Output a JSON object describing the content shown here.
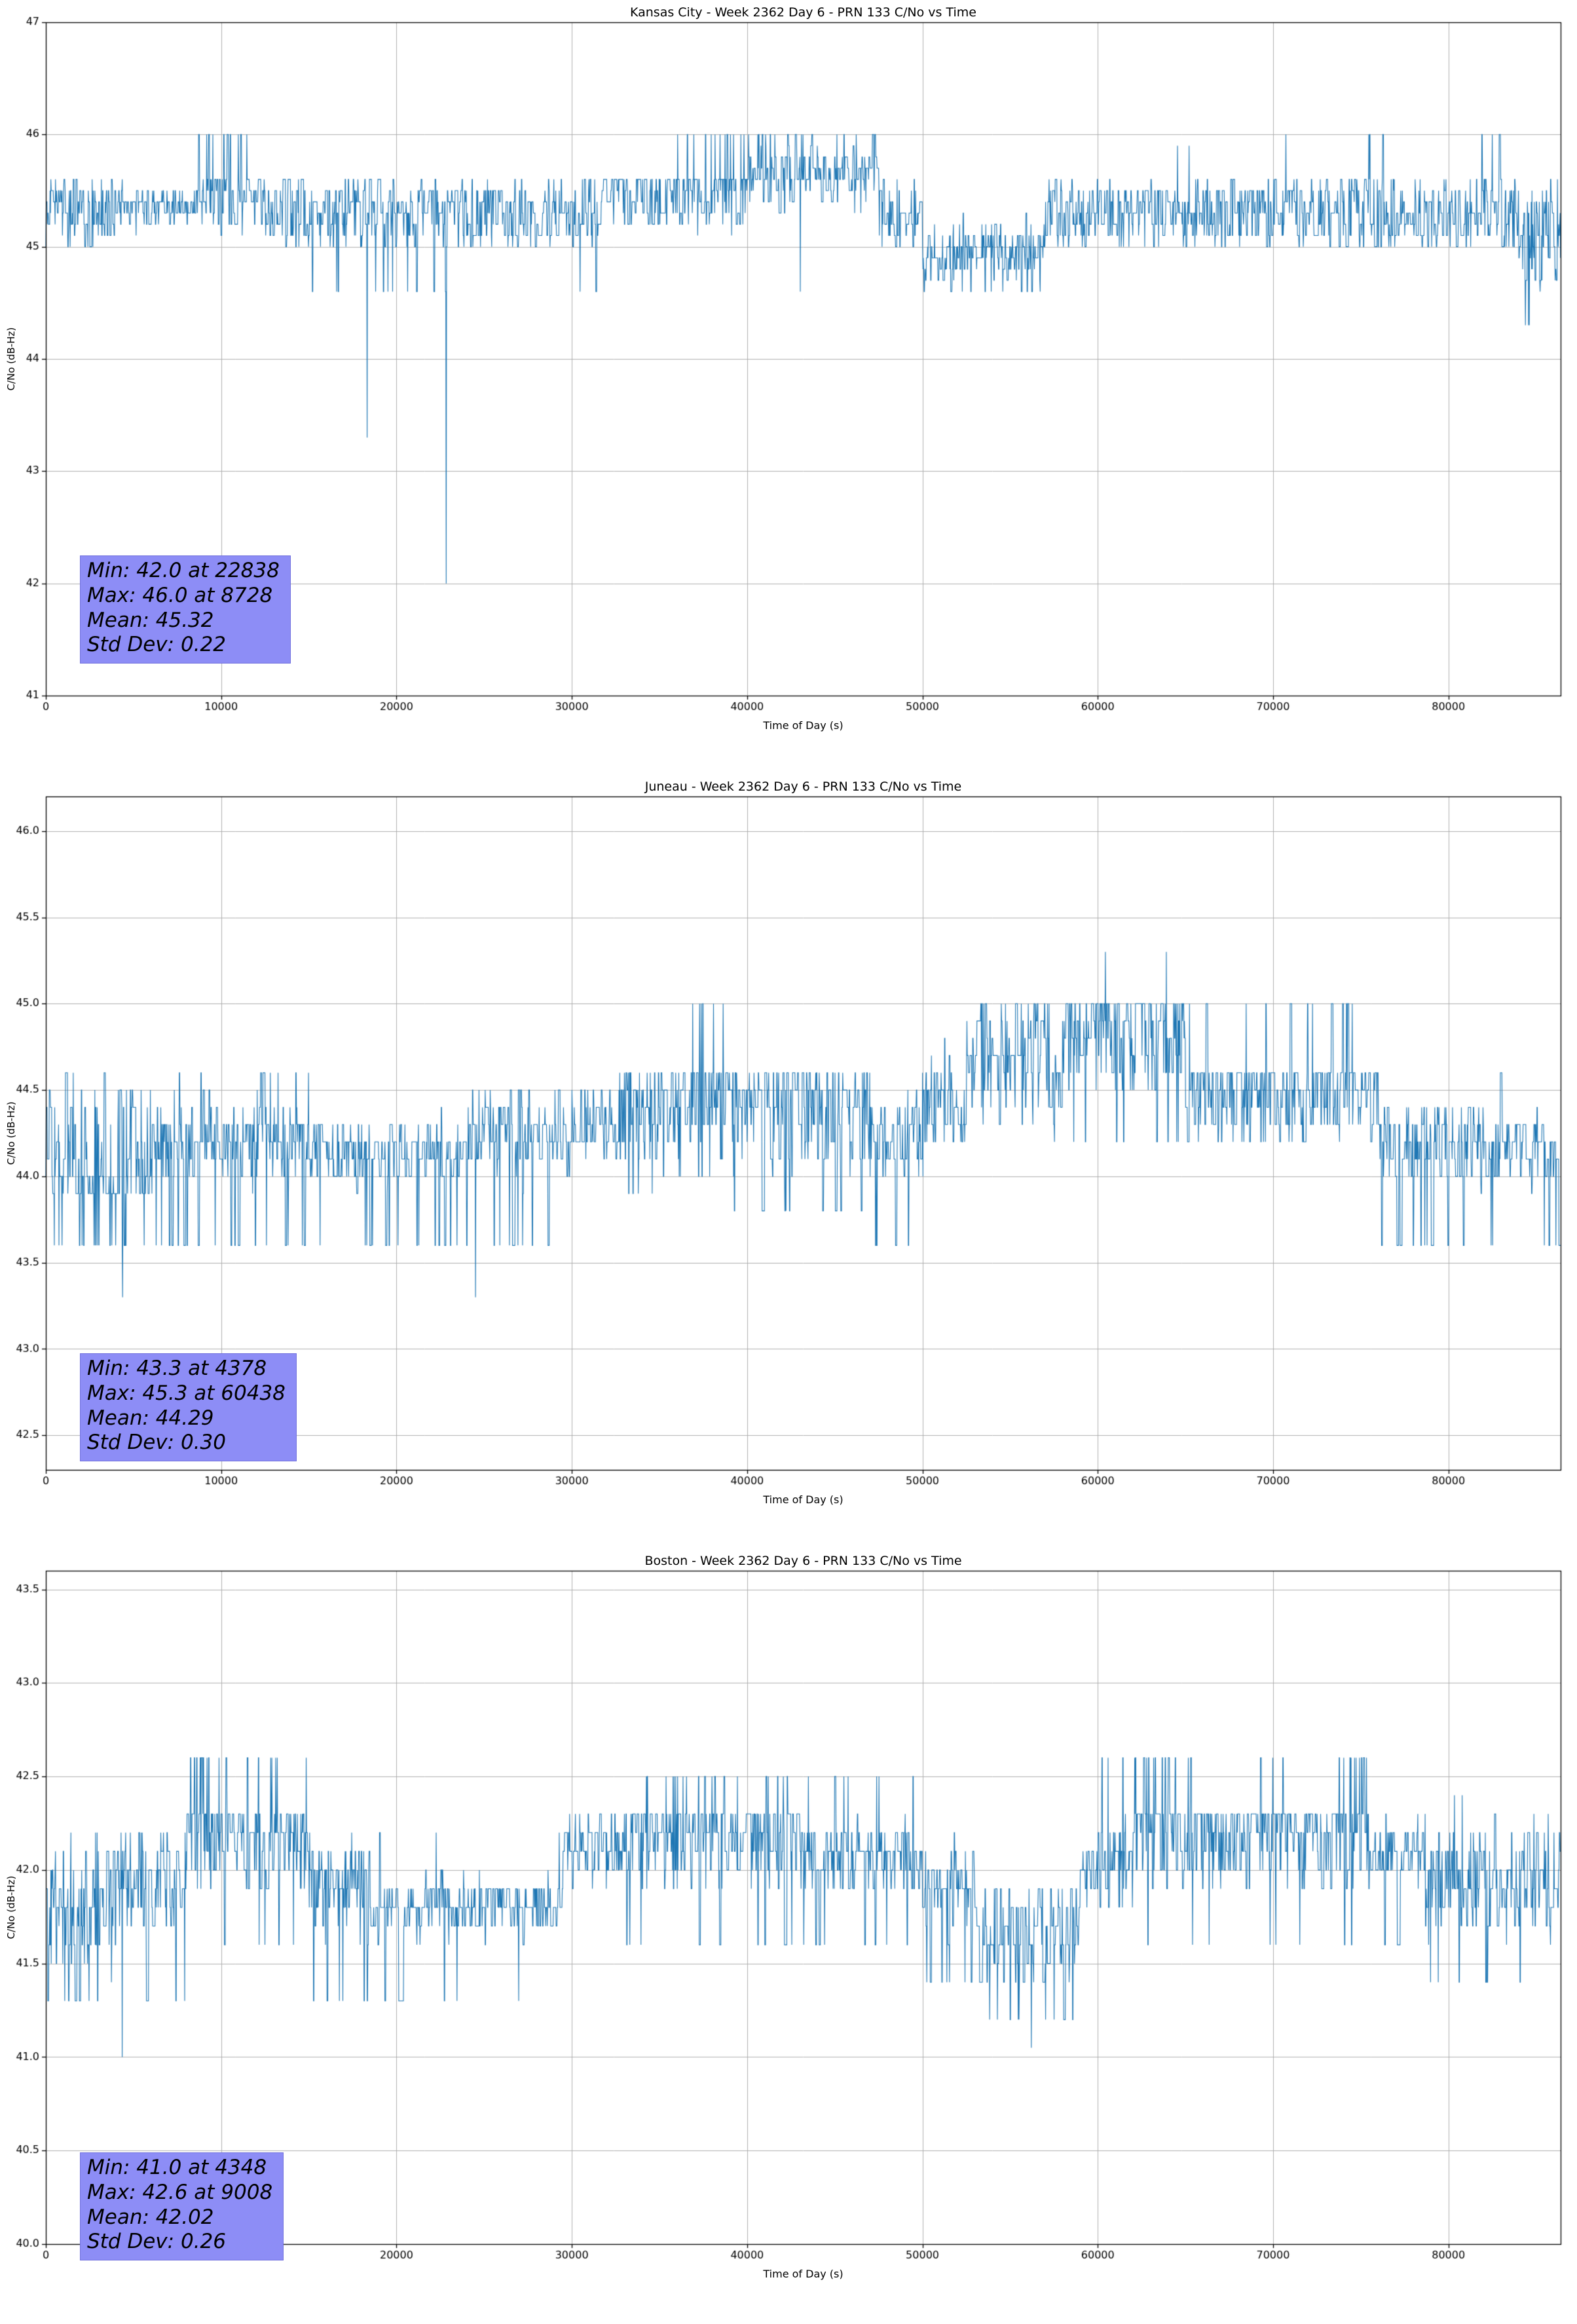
{
  "chart_data": [
    {
      "type": "line",
      "title": "Kansas City - Week 2362 Day 6 - PRN 133 C/No vs Time",
      "xlabel": "Time of Day (s)",
      "ylabel": "C/No (dB-Hz)",
      "xlim": [
        0,
        86400
      ],
      "ylim": [
        41,
        47
      ],
      "xticks": [
        0,
        10000,
        20000,
        30000,
        40000,
        50000,
        60000,
        70000,
        80000
      ],
      "xtick_labels": [
        "0",
        "10000",
        "20000",
        "30000",
        "40000",
        "50000",
        "60000",
        "70000",
        "80000"
      ],
      "yticks": [
        41,
        42,
        43,
        44,
        45,
        46,
        47
      ],
      "ytick_labels": [
        "41",
        "42",
        "43",
        "44",
        "45",
        "46",
        "47"
      ],
      "grid": true,
      "legend": "none",
      "line_color": "#1f77b4",
      "grid_color": "#b0b0b0",
      "stats": {
        "min": 42.0,
        "min_time": 22838,
        "max": 46.0,
        "max_time": 8728,
        "mean": 45.32,
        "std_dev": 0.22,
        "lines": [
          "Min: 42.0 at 22838",
          "Max: 46.0 at 8728",
          "Mean: 45.32",
          "Std Dev: 0.22"
        ],
        "box_color": "#8d8df6"
      },
      "series": {
        "sample_step_s": 22,
        "segments": [
          {
            "t0": 0,
            "t1": 4000,
            "low": 45.0,
            "high": 45.6,
            "bias": "flat"
          },
          {
            "t0": 4000,
            "t1": 8500,
            "low": 45.1,
            "high": 45.6,
            "bias": "mid"
          },
          {
            "t0": 8500,
            "t1": 12500,
            "low": 45.1,
            "high": 45.6,
            "bias": "top",
            "spike_v": 46.0,
            "spike_p": 0.05
          },
          {
            "t0": 12500,
            "t1": 15000,
            "low": 45.0,
            "high": 45.6,
            "bias": "flat"
          },
          {
            "t0": 15000,
            "t1": 19000,
            "low": 45.0,
            "high": 45.6,
            "bias": "flat",
            "dip_v": 44.6,
            "dip_p": 0.006
          },
          {
            "t0": 19000,
            "t1": 24000,
            "low": 45.0,
            "high": 45.6,
            "bias": "flat",
            "dip_v": 44.6,
            "dip_p": 0.02
          },
          {
            "t0": 24000,
            "t1": 29000,
            "low": 45.0,
            "high": 45.6,
            "bias": "flat"
          },
          {
            "t0": 29000,
            "t1": 31500,
            "low": 45.0,
            "high": 45.6,
            "bias": "flat",
            "dip_v": 44.6,
            "dip_p": 0.015
          },
          {
            "t0": 31500,
            "t1": 36000,
            "low": 45.1,
            "high": 45.6,
            "bias": "top"
          },
          {
            "t0": 36000,
            "t1": 40000,
            "low": 45.1,
            "high": 45.6,
            "bias": "top",
            "spike_v": 46.0,
            "spike_p": 0.05
          },
          {
            "t0": 40000,
            "t1": 47500,
            "low": 45.3,
            "high": 46.0,
            "bias": "mid",
            "spike_v": 46.0,
            "spike_p": 0.06,
            "dip_v": 44.6,
            "dip_p": 0.003
          },
          {
            "t0": 47500,
            "t1": 50000,
            "low": 45.0,
            "high": 45.6,
            "bias": "flat"
          },
          {
            "t0": 50000,
            "t1": 57000,
            "low": 44.6,
            "high": 45.3,
            "bias": "mid",
            "dip_v": 44.6,
            "dip_p": 0.03
          },
          {
            "t0": 57000,
            "t1": 63000,
            "low": 45.0,
            "high": 45.6,
            "bias": "flat"
          },
          {
            "t0": 63000,
            "t1": 66000,
            "low": 45.0,
            "high": 45.6,
            "bias": "flat",
            "spike_v": 45.9,
            "spike_p": 0.02
          },
          {
            "t0": 66000,
            "t1": 70000,
            "low": 45.0,
            "high": 45.6,
            "bias": "flat"
          },
          {
            "t0": 70000,
            "t1": 77500,
            "low": 45.0,
            "high": 45.6,
            "bias": "flat",
            "spike_v": 46.0,
            "spike_p": 0.03
          },
          {
            "t0": 77500,
            "t1": 81500,
            "low": 45.0,
            "high": 45.6,
            "bias": "flat"
          },
          {
            "t0": 81500,
            "t1": 84000,
            "low": 45.0,
            "high": 45.6,
            "bias": "flat",
            "spike_v": 46.0,
            "spike_p": 0.04
          },
          {
            "t0": 84000,
            "t1": 86400,
            "low": 44.6,
            "high": 45.6,
            "bias": "flat",
            "dip_v": 44.3,
            "dip_p": 0.03
          }
        ],
        "events": [
          {
            "t": 8728,
            "v": 46.0
          },
          {
            "t": 18330,
            "v": 43.3
          },
          {
            "t": 22838,
            "v": 42.0
          }
        ]
      }
    },
    {
      "type": "line",
      "title": "Juneau - Week 2362 Day 6 - PRN 133 C/No vs Time",
      "xlabel": "Time of Day (s)",
      "ylabel": "C/No (dB-Hz)",
      "xlim": [
        0,
        86400
      ],
      "ylim": [
        42.3,
        46.2
      ],
      "xticks": [
        0,
        10000,
        20000,
        30000,
        40000,
        50000,
        60000,
        70000,
        80000
      ],
      "xtick_labels": [
        "0",
        "10000",
        "20000",
        "30000",
        "40000",
        "50000",
        "60000",
        "70000",
        "80000"
      ],
      "yticks": [
        42.5,
        43.0,
        43.5,
        44.0,
        44.5,
        45.0,
        45.5,
        46.0
      ],
      "ytick_labels": [
        "42.5",
        "43.0",
        "43.5",
        "44.0",
        "44.5",
        "45.0",
        "45.5",
        "46.0"
      ],
      "grid": true,
      "legend": "none",
      "line_color": "#1f77b4",
      "grid_color": "#b0b0b0",
      "stats": {
        "min": 43.3,
        "min_time": 4378,
        "max": 45.3,
        "max_time": 60438,
        "mean": 44.29,
        "std_dev": 0.3,
        "lines": [
          "Min: 43.3 at 4378",
          "Max: 45.3 at 60438",
          "Mean: 44.29",
          "Std Dev: 0.30"
        ],
        "box_color": "#8d8df6"
      },
      "series": {
        "sample_step_s": 22,
        "segments": [
          {
            "t0": 0,
            "t1": 6000,
            "low": 43.9,
            "high": 44.6,
            "bias": "bottom",
            "dip_v": 43.6,
            "dip_p": 0.07
          },
          {
            "t0": 6000,
            "t1": 15000,
            "low": 43.9,
            "high": 44.5,
            "bias": "mid",
            "spike_v": 44.6,
            "spike_p": 0.03,
            "dip_v": 43.6,
            "dip_p": 0.05
          },
          {
            "t0": 15000,
            "t1": 24000,
            "low": 43.9,
            "high": 44.4,
            "bias": "mid",
            "dip_v": 43.6,
            "dip_p": 0.05
          },
          {
            "t0": 24000,
            "t1": 30000,
            "low": 43.9,
            "high": 44.6,
            "bias": "mid",
            "dip_v": 43.6,
            "dip_p": 0.04
          },
          {
            "t0": 30000,
            "t1": 33000,
            "low": 44.0,
            "high": 44.6,
            "bias": "mid"
          },
          {
            "t0": 33000,
            "t1": 36000,
            "low": 44.0,
            "high": 44.6,
            "bias": "top",
            "dip_v": 43.9,
            "dip_p": 0.03
          },
          {
            "t0": 36000,
            "t1": 39000,
            "low": 44.0,
            "high": 44.6,
            "bias": "top",
            "spike_v": 45.0,
            "spike_p": 0.04
          },
          {
            "t0": 39000,
            "t1": 47000,
            "low": 44.0,
            "high": 44.6,
            "bias": "top",
            "dip_v": 43.8,
            "dip_p": 0.02
          },
          {
            "t0": 47000,
            "t1": 50000,
            "low": 43.9,
            "high": 44.6,
            "bias": "mid",
            "dip_v": 43.6,
            "dip_p": 0.04
          },
          {
            "t0": 50000,
            "t1": 52500,
            "low": 44.0,
            "high": 44.8,
            "bias": "mid"
          },
          {
            "t0": 52500,
            "t1": 58000,
            "low": 44.2,
            "high": 45.0,
            "bias": "mid",
            "spike_v": 45.0,
            "spike_p": 0.05,
            "dip_v": 43.9,
            "dip_p": 0.01
          },
          {
            "t0": 58000,
            "t1": 65000,
            "low": 44.5,
            "high": 45.0,
            "bias": "top",
            "dip_v": 44.2,
            "dip_p": 0.02
          },
          {
            "t0": 65000,
            "t1": 72000,
            "low": 44.2,
            "high": 44.6,
            "bias": "top",
            "spike_v": 45.0,
            "spike_p": 0.015
          },
          {
            "t0": 72000,
            "t1": 76000,
            "low": 44.2,
            "high": 44.6,
            "bias": "top",
            "spike_v": 45.0,
            "spike_p": 0.04
          },
          {
            "t0": 76000,
            "t1": 82000,
            "low": 43.9,
            "high": 44.5,
            "bias": "mid",
            "dip_v": 43.6,
            "dip_p": 0.04
          },
          {
            "t0": 82000,
            "t1": 86400,
            "low": 43.9,
            "high": 44.4,
            "bias": "mid",
            "spike_v": 44.6,
            "spike_p": 0.012,
            "dip_v": 43.6,
            "dip_p": 0.05
          }
        ],
        "events": [
          {
            "t": 4378,
            "v": 43.3
          },
          {
            "t": 24500,
            "v": 43.3
          },
          {
            "t": 60438,
            "v": 45.3
          },
          {
            "t": 63900,
            "v": 45.3
          }
        ]
      }
    },
    {
      "type": "line",
      "title": "Boston - Week 2362 Day 6 - PRN 133 C/No vs Time",
      "xlabel": "Time of Day (s)",
      "ylabel": "C/No (dB-Hz)",
      "xlim": [
        0,
        86400
      ],
      "ylim": [
        40.0,
        43.6
      ],
      "xticks": [
        0,
        10000,
        20000,
        30000,
        40000,
        50000,
        60000,
        70000,
        80000
      ],
      "xtick_labels": [
        "0",
        "10000",
        "20000",
        "30000",
        "40000",
        "50000",
        "60000",
        "70000",
        "80000"
      ],
      "yticks": [
        40.0,
        40.5,
        41.0,
        41.5,
        42.0,
        42.5,
        43.0,
        43.5
      ],
      "ytick_labels": [
        "40.0",
        "40.5",
        "41.0",
        "41.5",
        "42.0",
        "42.5",
        "43.0",
        "43.5"
      ],
      "grid": true,
      "legend": "none",
      "line_color": "#1f77b4",
      "grid_color": "#b0b0b0",
      "stats": {
        "min": 41.0,
        "min_time": 4348,
        "max": 42.6,
        "max_time": 9008,
        "mean": 42.02,
        "std_dev": 0.26,
        "lines": [
          "Min: 41.0 at 4348",
          "Max: 42.6 at 9008",
          "Mean: 42.02",
          "Std Dev: 0.26"
        ],
        "box_color": "#8d8df6"
      },
      "series": {
        "sample_step_s": 22,
        "segments": [
          {
            "t0": 0,
            "t1": 4000,
            "low": 41.3,
            "high": 42.3,
            "bias": "mid",
            "dip_v": 41.3,
            "dip_p": 0.05
          },
          {
            "t0": 4000,
            "t1": 8000,
            "low": 41.6,
            "high": 42.3,
            "bias": "mid",
            "dip_v": 41.3,
            "dip_p": 0.02
          },
          {
            "t0": 8000,
            "t1": 9500,
            "low": 41.8,
            "high": 42.3,
            "bias": "top",
            "spike_v": 42.6,
            "spike_p": 0.08
          },
          {
            "t0": 9500,
            "t1": 15000,
            "low": 41.9,
            "high": 42.3,
            "bias": "top",
            "spike_v": 42.6,
            "spike_p": 0.04,
            "dip_v": 41.6,
            "dip_p": 0.02
          },
          {
            "t0": 15000,
            "t1": 18500,
            "low": 41.6,
            "high": 42.3,
            "bias": "mid",
            "dip_v": 41.3,
            "dip_p": 0.03
          },
          {
            "t0": 18500,
            "t1": 29500,
            "low": 41.6,
            "high": 42.0,
            "bias": "mid",
            "spike_v": 42.2,
            "spike_p": 0.01,
            "dip_v": 41.3,
            "dip_p": 0.02
          },
          {
            "t0": 29500,
            "t1": 33000,
            "low": 41.9,
            "high": 42.3,
            "bias": "mid"
          },
          {
            "t0": 33000,
            "t1": 43000,
            "low": 41.9,
            "high": 42.3,
            "bias": "top",
            "spike_v": 42.5,
            "spike_p": 0.04,
            "dip_v": 41.6,
            "dip_p": 0.015
          },
          {
            "t0": 43000,
            "t1": 50000,
            "low": 41.8,
            "high": 42.3,
            "bias": "mid",
            "spike_v": 42.5,
            "spike_p": 0.03,
            "dip_v": 41.6,
            "dip_p": 0.03
          },
          {
            "t0": 50000,
            "t1": 53000,
            "low": 41.6,
            "high": 42.2,
            "bias": "mid",
            "dip_v": 41.4,
            "dip_p": 0.04
          },
          {
            "t0": 53000,
            "t1": 59000,
            "low": 41.3,
            "high": 42.0,
            "bias": "mid",
            "dip_v": 41.2,
            "dip_p": 0.05
          },
          {
            "t0": 59000,
            "t1": 62000,
            "low": 41.7,
            "high": 42.3,
            "bias": "mid",
            "spike_v": 42.6,
            "spike_p": 0.02
          },
          {
            "t0": 62000,
            "t1": 66500,
            "low": 41.9,
            "high": 42.3,
            "bias": "top",
            "spike_v": 42.6,
            "spike_p": 0.05,
            "dip_v": 41.6,
            "dip_p": 0.01
          },
          {
            "t0": 66500,
            "t1": 69000,
            "low": 41.9,
            "high": 42.3,
            "bias": "top"
          },
          {
            "t0": 69000,
            "t1": 75500,
            "low": 41.9,
            "high": 42.3,
            "bias": "top",
            "spike_v": 42.6,
            "spike_p": 0.05,
            "dip_v": 41.6,
            "dip_p": 0.01
          },
          {
            "t0": 75500,
            "t1": 78500,
            "low": 41.9,
            "high": 42.3,
            "bias": "mid",
            "dip_v": 41.6,
            "dip_p": 0.02
          },
          {
            "t0": 78500,
            "t1": 86400,
            "low": 41.6,
            "high": 42.3,
            "bias": "mid",
            "spike_v": 42.4,
            "spike_p": 0.01,
            "dip_v": 41.4,
            "dip_p": 0.02
          }
        ],
        "events": [
          {
            "t": 4348,
            "v": 41.0
          },
          {
            "t": 9008,
            "v": 42.6
          },
          {
            "t": 56200,
            "v": 41.05
          }
        ]
      }
    }
  ]
}
